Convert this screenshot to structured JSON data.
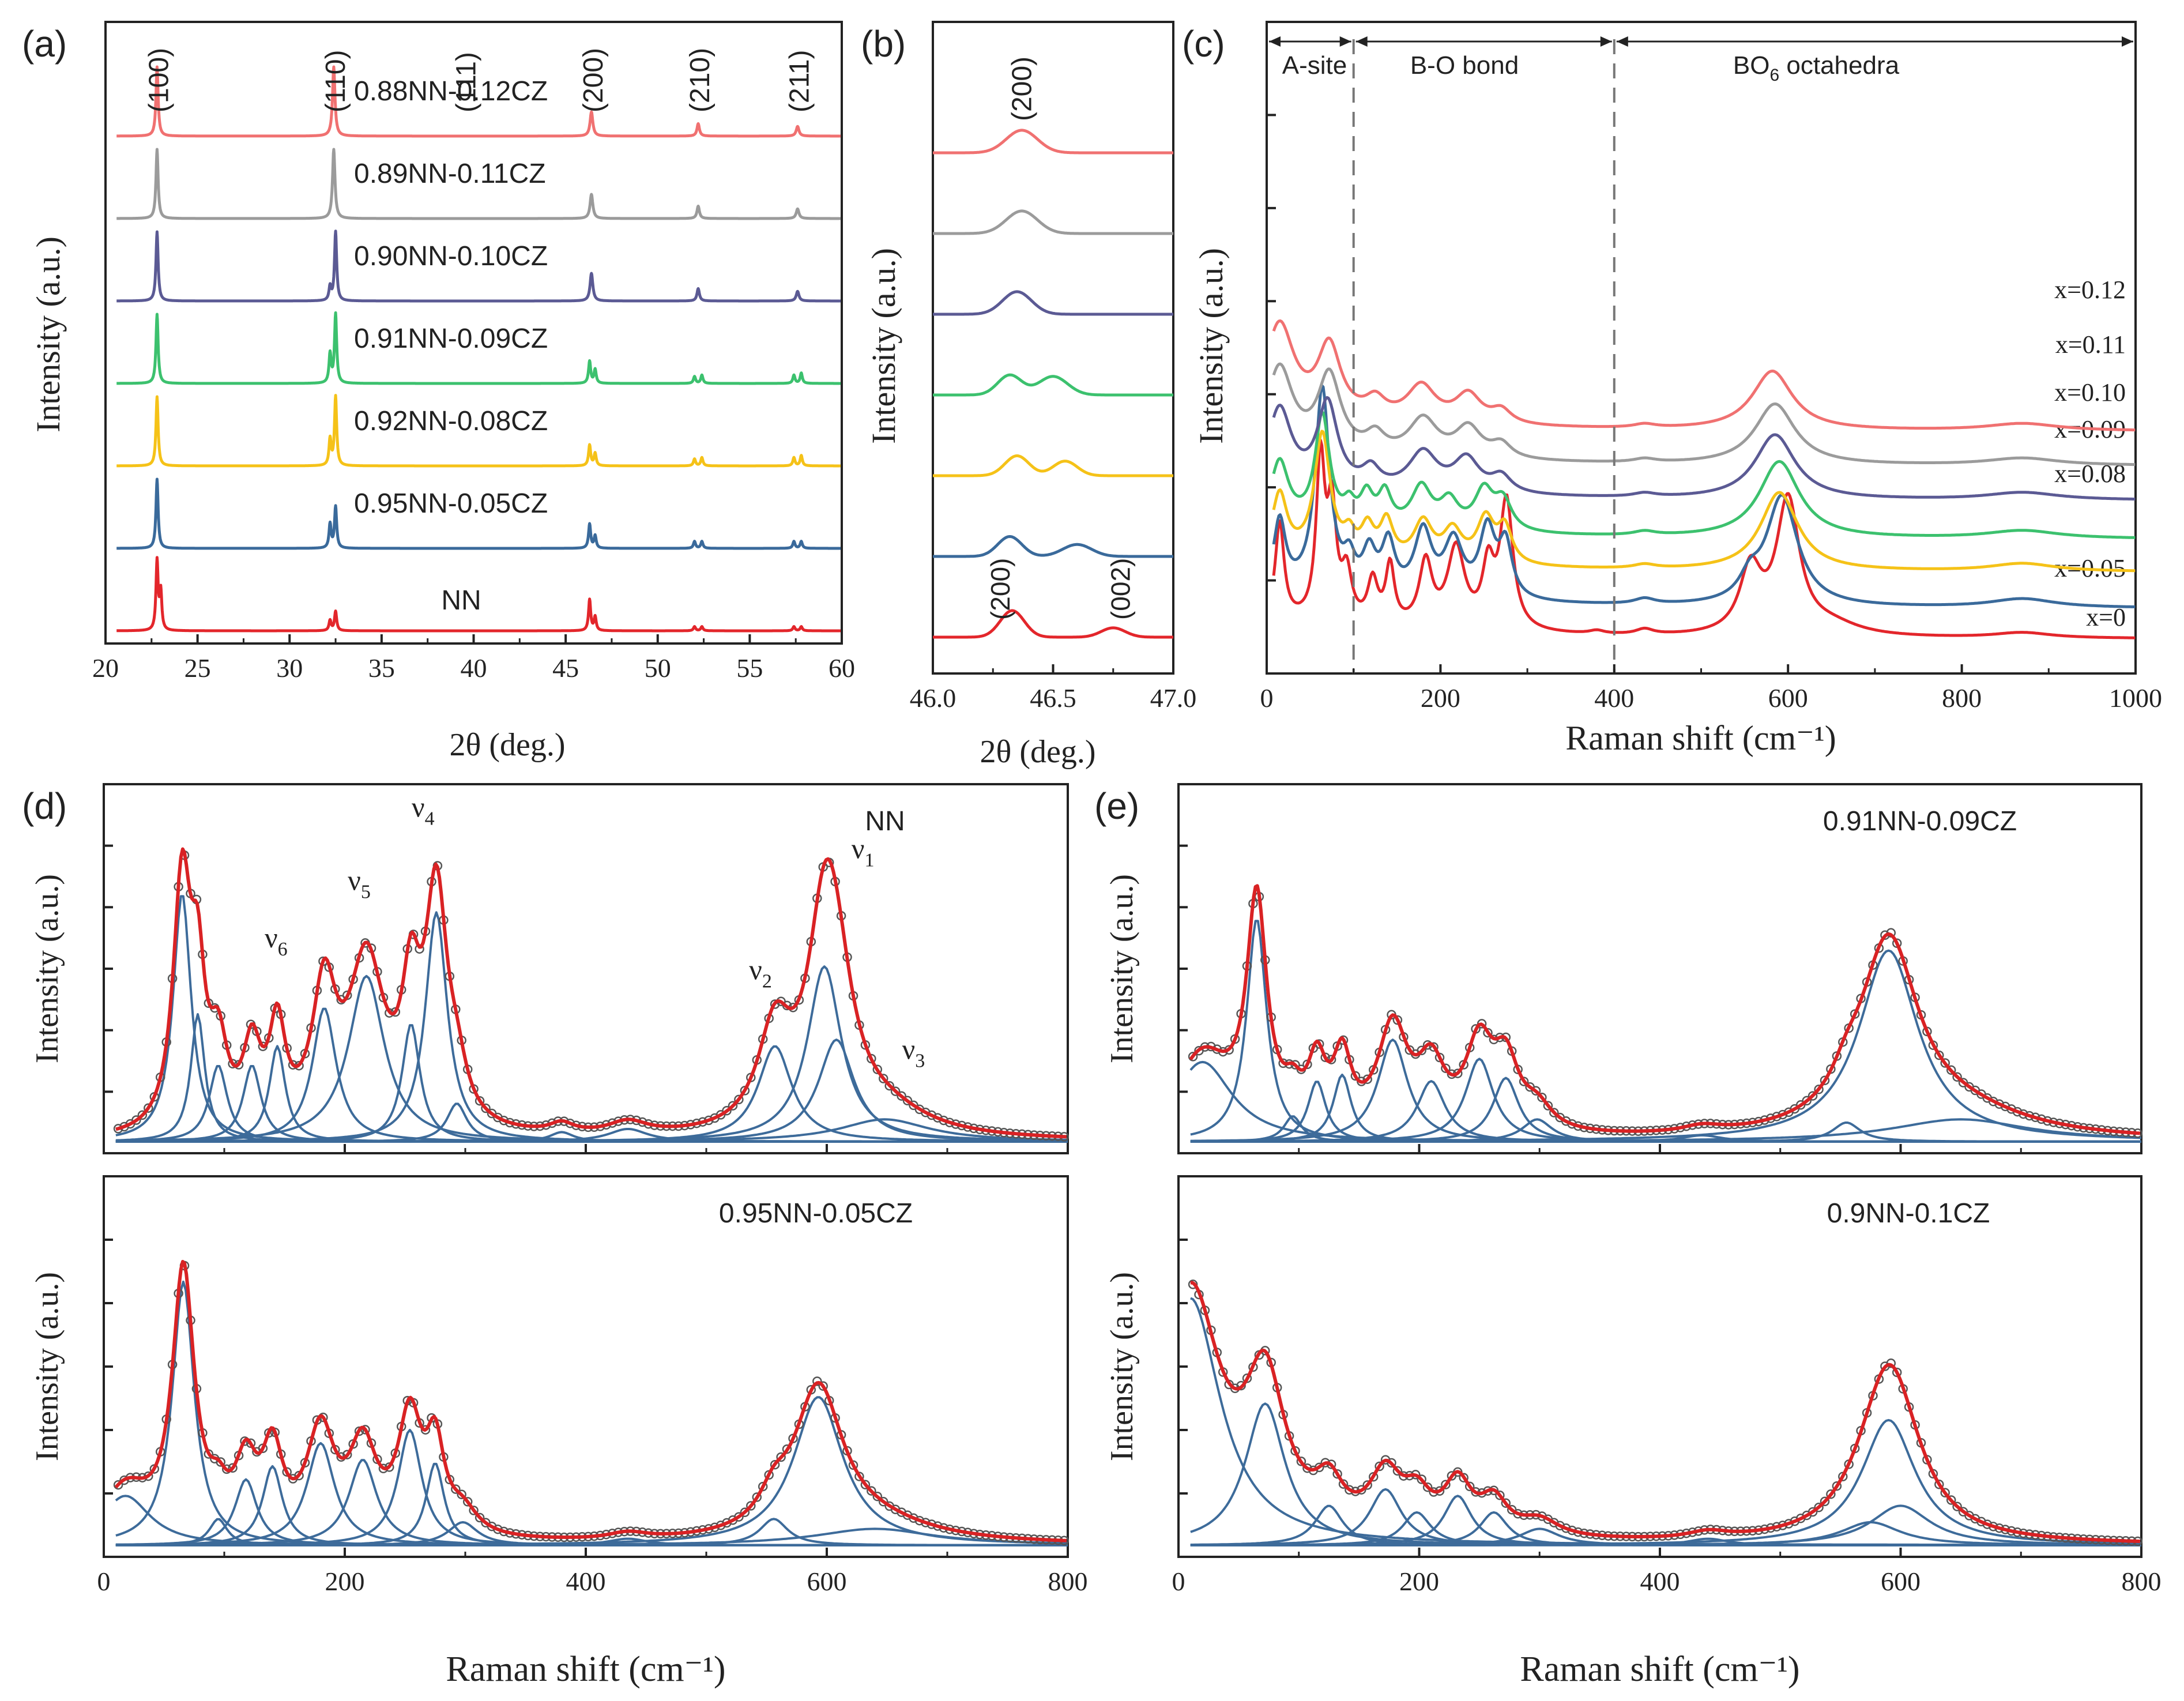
{
  "colors": {
    "NN": "#e3262b",
    "x005": "#3a6a9b",
    "x008": "#f5c218",
    "x009": "#3cc16e",
    "x010": "#5b5a94",
    "x011": "#9b9b9b",
    "x012": "#f07171",
    "fit": "#d92224",
    "component": "#3d6b9a",
    "marker": "#555555",
    "axis": "#222222"
  },
  "chart_data": [
    {
      "id": "a",
      "type": "line",
      "panel_label": "(a)",
      "xlabel": "2θ (deg.)",
      "ylabel": "Intensity (a.u.)",
      "xlim": [
        20,
        60
      ],
      "xticks": [
        "20",
        "25",
        "30",
        "35",
        "40",
        "45",
        "50",
        "55",
        "60"
      ],
      "xtick_values": [
        20,
        25,
        30,
        35,
        40,
        45,
        50,
        55,
        60
      ],
      "peak_labels": [
        {
          "text": "(100)",
          "x": 22.9
        },
        {
          "text": "(110)",
          "x": 32.5
        },
        {
          "text": "(111)",
          "x": 39.6
        },
        {
          "text": "(200)",
          "x": 46.5
        },
        {
          "text": "(210)",
          "x": 52.3
        },
        {
          "text": "(211)",
          "x": 57.7
        }
      ],
      "series": [
        {
          "name": "NN",
          "label": "NN",
          "color_key": "NN",
          "offset": 0,
          "peaks": [
            [
              22.8,
              1.0,
              0.07
            ],
            [
              23.0,
              0.55,
              0.07
            ],
            [
              32.2,
              0.15,
              0.07
            ],
            [
              32.5,
              0.28,
              0.07
            ],
            [
              46.3,
              0.45,
              0.07
            ],
            [
              46.6,
              0.2,
              0.07
            ],
            [
              52.0,
              0.06,
              0.07
            ],
            [
              52.4,
              0.06,
              0.07
            ],
            [
              57.4,
              0.06,
              0.07
            ],
            [
              57.8,
              0.06,
              0.07
            ]
          ]
        },
        {
          "name": "0.95NN-0.05CZ",
          "label": "0.95NN-0.05CZ",
          "color_key": "x005",
          "offset": 1,
          "peaks": [
            [
              22.8,
              1.0,
              0.07
            ],
            [
              32.2,
              0.35,
              0.07
            ],
            [
              32.5,
              0.6,
              0.07
            ],
            [
              46.3,
              0.35,
              0.07
            ],
            [
              46.6,
              0.18,
              0.07
            ],
            [
              52.0,
              0.1,
              0.07
            ],
            [
              52.4,
              0.1,
              0.07
            ],
            [
              57.4,
              0.1,
              0.07
            ],
            [
              57.8,
              0.1,
              0.07
            ]
          ]
        },
        {
          "name": "0.92NN-0.08CZ",
          "label": "0.92NN-0.08CZ",
          "color_key": "x008",
          "offset": 2,
          "peaks": [
            [
              22.8,
              1.0,
              0.07
            ],
            [
              32.2,
              0.38,
              0.07
            ],
            [
              32.5,
              1.0,
              0.07
            ],
            [
              46.3,
              0.3,
              0.07
            ],
            [
              46.6,
              0.18,
              0.07
            ],
            [
              52.0,
              0.1,
              0.07
            ],
            [
              52.4,
              0.12,
              0.07
            ],
            [
              57.4,
              0.12,
              0.07
            ],
            [
              57.8,
              0.15,
              0.07
            ]
          ]
        },
        {
          "name": "0.91NN-0.09CZ",
          "label": "0.91NN-0.09CZ",
          "color_key": "x009",
          "offset": 3,
          "peaks": [
            [
              22.8,
              1.0,
              0.07
            ],
            [
              32.2,
              0.42,
              0.07
            ],
            [
              32.5,
              1.0,
              0.07
            ],
            [
              46.3,
              0.32,
              0.07
            ],
            [
              46.6,
              0.2,
              0.07
            ],
            [
              52.0,
              0.1,
              0.07
            ],
            [
              52.4,
              0.12,
              0.07
            ],
            [
              57.4,
              0.12,
              0.07
            ],
            [
              57.8,
              0.15,
              0.07
            ]
          ]
        },
        {
          "name": "0.90NN-0.10CZ",
          "label": "0.90NN-0.10CZ",
          "color_key": "x010",
          "offset": 4,
          "peaks": [
            [
              22.8,
              1.0,
              0.07
            ],
            [
              32.2,
              0.2,
              0.07
            ],
            [
              32.5,
              1.0,
              0.07
            ],
            [
              46.4,
              0.4,
              0.09
            ],
            [
              52.2,
              0.18,
              0.08
            ],
            [
              57.6,
              0.14,
              0.09
            ]
          ]
        },
        {
          "name": "0.89NN-0.11CZ",
          "label": "0.89NN-0.11CZ",
          "color_key": "x011",
          "offset": 5,
          "peaks": [
            [
              22.8,
              1.0,
              0.07
            ],
            [
              32.4,
              1.0,
              0.08
            ],
            [
              46.4,
              0.35,
              0.09
            ],
            [
              52.2,
              0.18,
              0.08
            ],
            [
              57.6,
              0.14,
              0.09
            ]
          ]
        },
        {
          "name": "0.88NN-0.12CZ",
          "label": "0.88NN-0.12CZ",
          "color_key": "x012",
          "offset": 6,
          "peaks": [
            [
              22.8,
              1.0,
              0.07
            ],
            [
              32.4,
              1.0,
              0.08
            ],
            [
              46.4,
              0.35,
              0.09
            ],
            [
              52.2,
              0.18,
              0.08
            ],
            [
              57.6,
              0.14,
              0.09
            ]
          ]
        }
      ]
    },
    {
      "id": "b",
      "type": "line",
      "panel_label": "(b)",
      "xlabel": "2θ (deg.)",
      "ylabel": "Intensity (a.u.)",
      "xlim": [
        46.0,
        47.0
      ],
      "xticks": [
        "46.0",
        "46.5",
        "47.0"
      ],
      "xtick_values": [
        46.0,
        46.5,
        47.0
      ],
      "top_label": {
        "text": "(200)",
        "x": 46.37
      },
      "split_labels": [
        {
          "text": "(200)",
          "x": 46.28
        },
        {
          "text": "(002)",
          "x": 46.78
        }
      ],
      "series": [
        {
          "name": "NN",
          "color_key": "NN",
          "offset": 0,
          "peaks": [
            [
              46.33,
              1.0,
              0.05
            ],
            [
              46.75,
              0.35,
              0.05
            ]
          ]
        },
        {
          "name": "0.95NN-0.05CZ",
          "color_key": "x005",
          "offset": 1,
          "peaks": [
            [
              46.32,
              0.75,
              0.05
            ],
            [
              46.6,
              0.45,
              0.06
            ]
          ]
        },
        {
          "name": "0.92NN-0.08CZ",
          "color_key": "x008",
          "offset": 2,
          "peaks": [
            [
              46.35,
              0.75,
              0.05
            ],
            [
              46.55,
              0.55,
              0.05
            ]
          ]
        },
        {
          "name": "0.91NN-0.09CZ",
          "color_key": "x009",
          "offset": 3,
          "peaks": [
            [
              46.32,
              0.75,
              0.05
            ],
            [
              46.5,
              0.7,
              0.06
            ]
          ]
        },
        {
          "name": "0.90NN-0.10CZ",
          "color_key": "x010",
          "offset": 4,
          "peaks": [
            [
              46.35,
              0.85,
              0.06
            ]
          ]
        },
        {
          "name": "0.89NN-0.11CZ",
          "color_key": "x011",
          "offset": 5,
          "peaks": [
            [
              46.37,
              0.85,
              0.065
            ]
          ]
        },
        {
          "name": "0.88NN-0.12CZ",
          "color_key": "x012",
          "offset": 6,
          "peaks": [
            [
              46.37,
              0.85,
              0.065
            ]
          ]
        }
      ]
    },
    {
      "id": "c",
      "type": "line",
      "panel_label": "(c)",
      "xlabel": "Raman shift (cm⁻¹)",
      "ylabel": "Intensity (a.u.)",
      "xlim": [
        0,
        1000
      ],
      "xticks": [
        "0",
        "200",
        "400",
        "600",
        "800",
        "1000"
      ],
      "xtick_values": [
        0,
        200,
        400,
        600,
        800,
        1000
      ],
      "dividers": [
        100,
        400
      ],
      "regions": [
        {
          "text": "A-site",
          "from": 0,
          "to": 100
        },
        {
          "text": "B-O bond",
          "from": 100,
          "to": 400
        },
        {
          "text": "BO",
          "sub": "6",
          "tail": " octahedra",
          "from": 400,
          "to": 1000
        }
      ],
      "series": [
        {
          "label": "x=0",
          "color_key": "NN",
          "offset": 0
        },
        {
          "label": "x=0.05",
          "color_key": "x005",
          "offset": 1
        },
        {
          "label": "x=0.08",
          "color_key": "x008",
          "offset": 2
        },
        {
          "label": "x=0.09",
          "color_key": "x009",
          "offset": 3
        },
        {
          "label": "x=0.10",
          "color_key": "x010",
          "offset": 4
        },
        {
          "label": "x=0.11",
          "color_key": "x011",
          "offset": 5
        },
        {
          "label": "x=0.12",
          "color_key": "x012",
          "offset": 6
        }
      ]
    },
    {
      "id": "d",
      "type": "line",
      "panel_label": "(d)",
      "xlabel": "Raman shift (cm⁻¹)",
      "ylabel": "Intensity (a.u.)",
      "xlim": [
        0,
        800
      ],
      "xticks": [
        "0",
        "200",
        "400",
        "600",
        "800"
      ],
      "xtick_values": [
        0,
        200,
        400,
        600,
        800
      ],
      "subplots": [
        {
          "title": "NN",
          "mode_labels": [
            {
              "text": "ν",
              "sub": "6",
              "x": 143,
              "y": 0.61
            },
            {
              "text": "ν",
              "sub": "5",
              "x": 212,
              "y": 0.79
            },
            {
              "text": "ν",
              "sub": "4",
              "x": 265,
              "y": 1.02
            },
            {
              "text": "ν",
              "sub": "2",
              "x": 545,
              "y": 0.51
            },
            {
              "text": "ν",
              "sub": "1",
              "x": 630,
              "y": 0.89
            },
            {
              "text": "ν",
              "sub": "3",
              "x": 672,
              "y": 0.26
            }
          ],
          "components": [
            [
              65,
              0.78,
              9
            ],
            [
              78,
              0.4,
              7
            ],
            [
              95,
              0.24,
              9
            ],
            [
              123,
              0.24,
              9
            ],
            [
              144,
              0.3,
              8
            ],
            [
              183,
              0.42,
              12
            ],
            [
              218,
              0.52,
              18
            ],
            [
              255,
              0.37,
              9
            ],
            [
              276,
              0.72,
              11
            ],
            [
              293,
              0.12,
              10
            ],
            [
              380,
              0.03,
              12
            ],
            [
              435,
              0.04,
              20
            ],
            [
              557,
              0.3,
              17
            ],
            [
              598,
              0.55,
              17
            ],
            [
              608,
              0.32,
              18
            ],
            [
              648,
              0.07,
              45
            ]
          ]
        },
        {
          "title": "0.95NN-0.05CZ",
          "components": [
            [
              18,
              0.15,
              25
            ],
            [
              66,
              0.8,
              11
            ],
            [
              95,
              0.08,
              9
            ],
            [
              118,
              0.2,
              11
            ],
            [
              140,
              0.24,
              10
            ],
            [
              180,
              0.31,
              14
            ],
            [
              215,
              0.26,
              14
            ],
            [
              254,
              0.35,
              12
            ],
            [
              275,
              0.25,
              9
            ],
            [
              298,
              0.07,
              15
            ],
            [
              435,
              0.02,
              20
            ],
            [
              556,
              0.08,
              14
            ],
            [
              593,
              0.45,
              25
            ],
            [
              640,
              0.05,
              60
            ]
          ]
        }
      ]
    },
    {
      "id": "e",
      "type": "line",
      "panel_label": "(e)",
      "xlabel": "Raman shift (cm⁻¹)",
      "ylabel": "Intensity (a.u.)",
      "xlim": [
        0,
        800
      ],
      "xticks": [
        "0",
        "200",
        "400",
        "600",
        "800"
      ],
      "xtick_values": [
        0,
        200,
        400,
        600,
        800
      ],
      "subplots": [
        {
          "title": "0.91NN-0.09CZ",
          "components": [
            [
              20,
              0.25,
              30
            ],
            [
              65,
              0.7,
              10
            ],
            [
              95,
              0.08,
              9
            ],
            [
              115,
              0.19,
              9
            ],
            [
              136,
              0.21,
              9
            ],
            [
              178,
              0.32,
              15
            ],
            [
              210,
              0.19,
              14
            ],
            [
              250,
              0.26,
              14
            ],
            [
              272,
              0.2,
              13
            ],
            [
              298,
              0.07,
              15
            ],
            [
              435,
              0.02,
              20
            ],
            [
              555,
              0.06,
              14
            ],
            [
              590,
              0.6,
              30
            ],
            [
              650,
              0.07,
              70
            ]
          ]
        },
        {
          "title": "0.9NN-0.1CZ",
          "components": [
            [
              10,
              0.75,
              30
            ],
            [
              72,
              0.43,
              20
            ],
            [
              125,
              0.12,
              14
            ],
            [
              172,
              0.17,
              16
            ],
            [
              198,
              0.1,
              14
            ],
            [
              232,
              0.15,
              14
            ],
            [
              262,
              0.1,
              14
            ],
            [
              300,
              0.05,
              20
            ],
            [
              440,
              0.02,
              20
            ],
            [
              575,
              0.07,
              30
            ],
            [
              590,
              0.38,
              27
            ],
            [
              600,
              0.12,
              30
            ]
          ]
        }
      ]
    }
  ]
}
